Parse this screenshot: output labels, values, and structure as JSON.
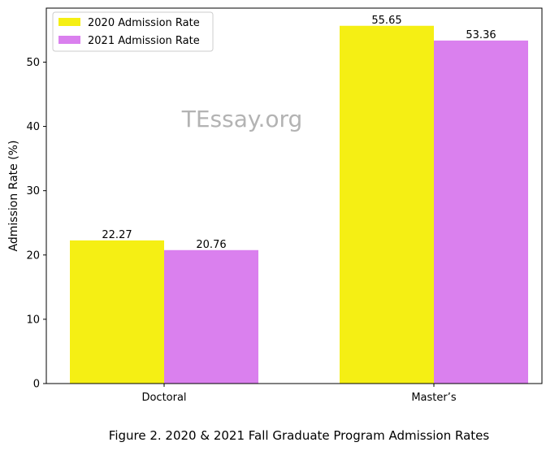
{
  "chart_data": {
    "type": "bar",
    "categories": [
      "Doctoral",
      "Master’s"
    ],
    "series": [
      {
        "name": "2020 Admission Rate",
        "values": [
          22.27,
          55.65
        ],
        "color": "#f5ef14"
      },
      {
        "name": "2021 Admission Rate",
        "values": [
          20.76,
          53.36
        ],
        "color": "#da80ee"
      }
    ],
    "value_labels": [
      [
        "22.27",
        "55.65"
      ],
      [
        "20.76",
        "53.36"
      ]
    ],
    "xlabel": "",
    "ylabel": "Admission Rate (%)",
    "ylim": [
      0,
      58.4
    ],
    "yticks": [
      0,
      10,
      20,
      30,
      40,
      50
    ],
    "grid": false,
    "legend_position": "top-left"
  },
  "watermark": "TEssay.org",
  "caption": "Figure 2. 2020 & 2021 Fall Graduate Program Admission Rates"
}
